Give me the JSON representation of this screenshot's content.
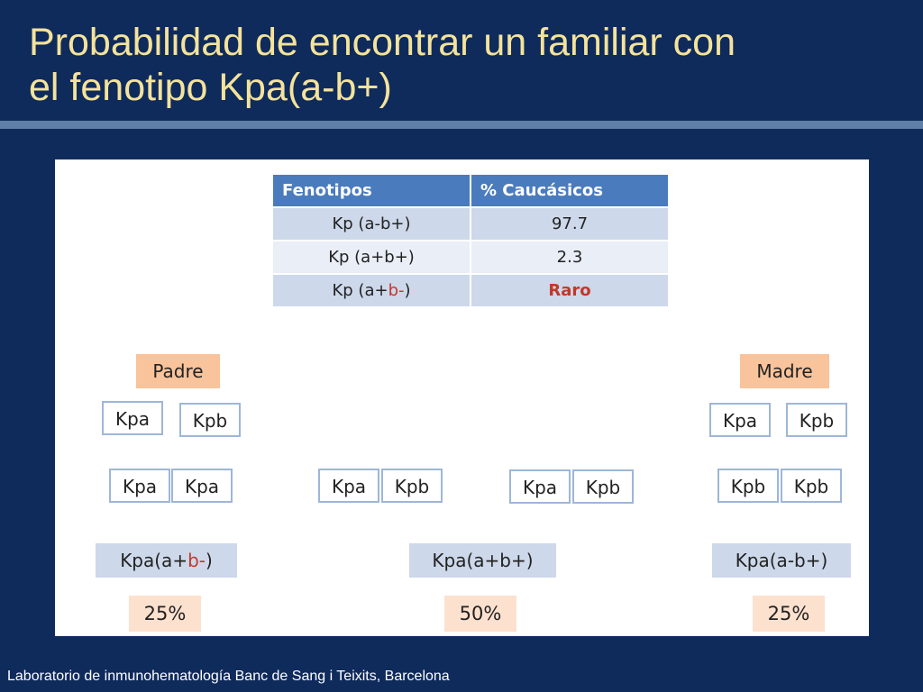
{
  "slide": {
    "title_line1": "Probabilidad de encontrar un familiar con",
    "title_line2": "el fenotipo Kpa(a-b+)",
    "footer": "Laboratorio de inmunohematología Banc de Sang i Teixits, Barcelona"
  },
  "table": {
    "headers": [
      "Fenotipos",
      "% Caucásicos"
    ],
    "rows": [
      {
        "phenotype": "Kp (a-b+)",
        "value": "97.7"
      },
      {
        "phenotype": "Kp (a+b+)",
        "value": "2.3"
      },
      {
        "phenotype_prefix": "Kp (a+",
        "phenotype_highlight": "b-",
        "phenotype_suffix": ")",
        "value": "Raro"
      }
    ],
    "highlight_color": "#c0392b"
  },
  "parents": {
    "father_label": "Padre",
    "mother_label": "Madre",
    "father_alleles": [
      "Kpa",
      "Kpb"
    ],
    "mother_alleles": [
      "Kpa",
      "Kpb"
    ]
  },
  "offspring": [
    {
      "alleles": [
        "Kpa",
        "Kpa"
      ]
    },
    {
      "alleles": [
        "Kpa",
        "Kpb"
      ]
    },
    {
      "alleles": [
        "Kpa",
        "Kpb"
      ]
    },
    {
      "alleles": [
        "Kpb",
        "Kpb"
      ]
    }
  ],
  "phenotypes": [
    {
      "prefix": "Kpa(a+",
      "highlight": "b-",
      "suffix": ")",
      "percent": "25%"
    },
    {
      "label": "Kpa(a+b+)",
      "percent": "50%"
    },
    {
      "label": "Kpa(a-b+)",
      "percent": "25%"
    }
  ]
}
